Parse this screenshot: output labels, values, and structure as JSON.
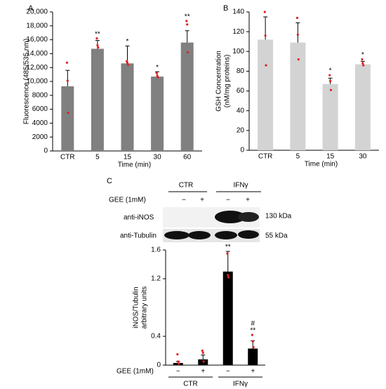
{
  "chart_data": [
    {
      "type": "bar",
      "panel": "A",
      "ylabel": [
        "Fluorescence (485/535 nm)"
      ],
      "xlabel": "Time (min)",
      "categories": [
        "CTR",
        "5",
        "15",
        "30",
        "60"
      ],
      "values": [
        9300,
        14700,
        12600,
        10700,
        15600
      ],
      "errors": [
        2300,
        1200,
        2500,
        700,
        1700
      ],
      "annotations": [
        "",
        "**",
        "*",
        "*",
        "**"
      ],
      "points": [
        [
          12700,
          10100,
          5500
        ],
        [
          16200,
          15200,
          14900
        ],
        [
          12900,
          12700,
          12400
        ],
        [
          11200,
          10800,
          10600
        ],
        [
          18700,
          18200,
          14200
        ]
      ],
      "color": "#808080",
      "point_color": "#e02020",
      "ylim": [
        0,
        20000
      ],
      "yticks": [
        0,
        2000,
        4000,
        6000,
        8000,
        {
          "value": 10000,
          "label": "10,000"
        },
        {
          "value": 12000,
          "label": "12,000"
        },
        {
          "value": 14000,
          "label": "14,000"
        },
        {
          "value": 16000,
          "label": "16,000"
        },
        {
          "value": 18000,
          "label": "18,000"
        },
        {
          "value": 20000,
          "label": "20,000"
        }
      ]
    },
    {
      "type": "bar",
      "panel": "B",
      "ylabel": [
        "GSH Concentration",
        "(nM/mg proteins)"
      ],
      "xlabel": "Time (min)",
      "categories": [
        "CTR",
        "5",
        "15",
        "30"
      ],
      "values": [
        112,
        109,
        67,
        87
      ],
      "errors": [
        23,
        20,
        6,
        3
      ],
      "annotations": [
        "",
        "",
        "*",
        "*"
      ],
      "points": [
        [
          140,
          116,
          86
        ],
        [
          134,
          117,
          92
        ],
        [
          76,
          70,
          61
        ],
        [
          92,
          88,
          86
        ]
      ],
      "color": "#d3d3d3",
      "point_color": "#e02020",
      "ylim": [
        0,
        140
      ],
      "yticks": [
        0,
        20,
        40,
        60,
        80,
        100,
        120,
        140
      ]
    },
    {
      "type": "bar",
      "panel": "C",
      "ylabel": [
        "iNOS/Tubulin",
        "arbitrary units"
      ],
      "categories": [
        "−",
        "+",
        "−",
        "+"
      ],
      "groups": [
        "CTR",
        "IFNγ"
      ],
      "row_label": "GEE (1mM)",
      "values": [
        0.03,
        0.08,
        1.3,
        0.23
      ],
      "errors": [
        0.02,
        0.06,
        0.28,
        0.11
      ],
      "annotations": [
        "",
        "",
        "**",
        "**"
      ],
      "annotations2": [
        "",
        "",
        "",
        "#"
      ],
      "points": [
        [
          0.15,
          0.05,
          0.02
        ],
        [
          0.2,
          0.17,
          0.05
        ],
        [
          1.55,
          1.25,
          1.22
        ],
        [
          0.42,
          0.33,
          0.25
        ]
      ],
      "color": "#000000",
      "point_color": "#e02020",
      "ylim": [
        0,
        1.6
      ],
      "yticks": [
        0,
        0.4,
        1.2,
        1.6
      ]
    }
  ],
  "blot": {
    "groups": [
      "CTR",
      "IFNγ"
    ],
    "treatment": "GEE (1mM)",
    "lanes": [
      "−",
      "+",
      "−",
      "+"
    ],
    "bands": [
      {
        "label": "anti-iNOS",
        "size": "130 kDa"
      },
      {
        "label": "anti-Tubulin",
        "size": "55 kDa"
      }
    ]
  }
}
